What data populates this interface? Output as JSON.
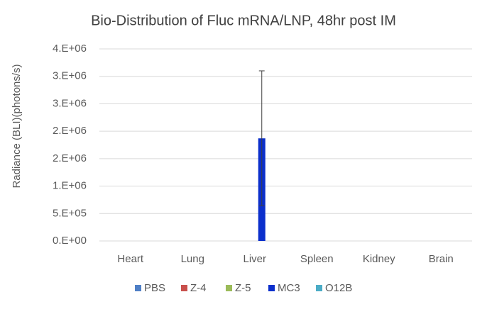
{
  "chart_data": {
    "type": "bar",
    "title": "Bio-Distribution of Fluc mRNA/LNP, 48hr post IM",
    "y_label": "Radiance (BLI)(photons/s)",
    "categories": [
      "Heart",
      "Lung",
      "Liver",
      "Spleen",
      "Kidney",
      "Brain"
    ],
    "series": [
      {
        "name": "PBS",
        "color": "#4f7fc6",
        "values": [
          0,
          0,
          0,
          0,
          0,
          0
        ],
        "errors": [
          0,
          0,
          0,
          0,
          0,
          0
        ]
      },
      {
        "name": "Z-4",
        "color": "#c9504c",
        "values": [
          0,
          0,
          0,
          0,
          0,
          0
        ],
        "errors": [
          0,
          0,
          0,
          0,
          0,
          0
        ]
      },
      {
        "name": "Z-5",
        "color": "#9bbb59",
        "values": [
          0,
          0,
          0,
          0,
          0,
          0
        ],
        "errors": [
          0,
          0,
          0,
          0,
          0,
          0
        ]
      },
      {
        "name": "MC3",
        "color": "#0b2fcc",
        "values": [
          0,
          0,
          1870000,
          0,
          0,
          0
        ],
        "errors": [
          0,
          0,
          1230000,
          0,
          0,
          0
        ]
      },
      {
        "name": "O12B",
        "color": "#4bacc6",
        "values": [
          0,
          0,
          0,
          0,
          0,
          0
        ],
        "errors": [
          0,
          0,
          0,
          0,
          0,
          0
        ]
      }
    ],
    "ylim": [
      0,
      3500000
    ],
    "yticks": [
      {
        "value": 0,
        "label": "0.E+00"
      },
      {
        "value": 500000,
        "label": "5.E+05"
      },
      {
        "value": 1000000,
        "label": "1.E+06"
      },
      {
        "value": 1500000,
        "label": "2.E+06"
      },
      {
        "value": 2000000,
        "label": "2.E+06"
      },
      {
        "value": 2500000,
        "label": "3.E+06"
      },
      {
        "value": 3000000,
        "label": "3.E+06"
      },
      {
        "value": 3500000,
        "label": "4.E+06"
      }
    ],
    "grid": true,
    "legend": "bottom"
  }
}
